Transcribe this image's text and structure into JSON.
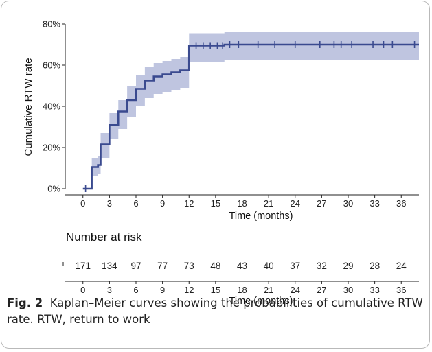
{
  "chart_data": {
    "type": "line",
    "subtype": "kaplan-meier-step",
    "ylabel": "Cumulative RTW rate",
    "xlabel": "Time (months)",
    "ylim": [
      0,
      80
    ],
    "xlim": [
      -2,
      38
    ],
    "y_ticks": [
      "0%",
      "20%",
      "40%",
      "60%",
      "80%"
    ],
    "x_ticks": [
      "0",
      "3",
      "6",
      "9",
      "12",
      "15",
      "18",
      "21",
      "24",
      "27",
      "30",
      "33",
      "36"
    ],
    "line_color": "#3a4a8f",
    "band_color": "#a9b1d6",
    "grid": false,
    "series": [
      {
        "steps": [
          {
            "x": 0,
            "y": 0,
            "lo": 0,
            "hi": 0
          },
          {
            "x": 1,
            "y": 10.5,
            "lo": 6,
            "hi": 15
          },
          {
            "x": 1.7,
            "y": 11.5,
            "lo": 7,
            "hi": 16
          },
          {
            "x": 2,
            "y": 21.5,
            "lo": 15,
            "hi": 27
          },
          {
            "x": 3,
            "y": 31,
            "lo": 24,
            "hi": 37
          },
          {
            "x": 4,
            "y": 37.5,
            "lo": 29,
            "hi": 43
          },
          {
            "x": 5,
            "y": 43,
            "lo": 35,
            "hi": 50
          },
          {
            "x": 6,
            "y": 48.5,
            "lo": 40,
            "hi": 55
          },
          {
            "x": 7,
            "y": 52.5,
            "lo": 44,
            "hi": 59
          },
          {
            "x": 8,
            "y": 54.5,
            "lo": 46,
            "hi": 61
          },
          {
            "x": 9,
            "y": 55.5,
            "lo": 47,
            "hi": 62
          },
          {
            "x": 10,
            "y": 56.5,
            "lo": 48,
            "hi": 63
          },
          {
            "x": 11,
            "y": 57.5,
            "lo": 49,
            "hi": 64
          },
          {
            "x": 12,
            "y": 69.5,
            "lo": 61.5,
            "hi": 75.5
          },
          {
            "x": 16,
            "y": 70,
            "lo": 62.5,
            "hi": 76
          },
          {
            "x": 38,
            "y": 70,
            "lo": 62.5,
            "hi": 76
          }
        ],
        "censor_ticks": [
          0.3,
          12.8,
          13.6,
          14.4,
          15.2,
          15.8,
          16.6,
          17.6,
          19.8,
          21.7,
          24,
          26.8,
          28.4,
          29.2,
          30.4,
          32.8,
          34,
          35,
          37.5
        ]
      }
    ],
    "risk_table": {
      "title": "Number at risk",
      "times": [
        "0",
        "3",
        "6",
        "9",
        "12",
        "15",
        "18",
        "21",
        "24",
        "27",
        "30",
        "33",
        "36"
      ],
      "counts": [
        "171",
        "134",
        "97",
        "77",
        "73",
        "48",
        "43",
        "40",
        "37",
        "32",
        "29",
        "28",
        "24"
      ],
      "xlabel": "Time (months)"
    }
  },
  "caption": {
    "lead": "Fig. 2",
    "text": "Kaplan–Meier curves showing the probabilities of cumulative RTW rate. RTW, return to work"
  }
}
